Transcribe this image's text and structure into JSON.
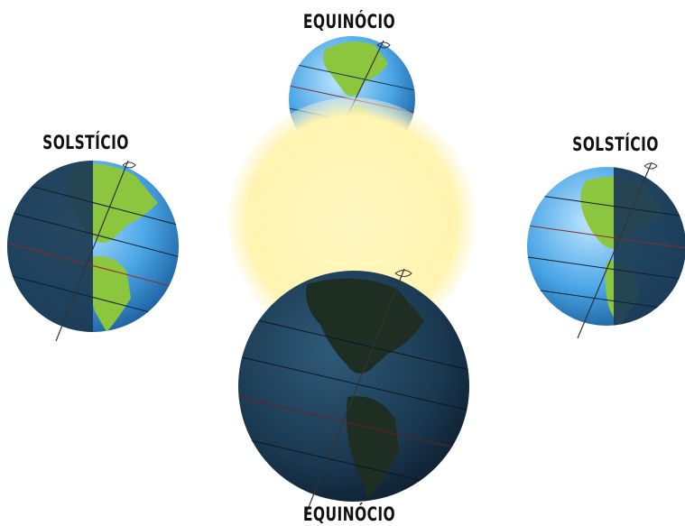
{
  "labels": {
    "top": "EQUINÓCIO",
    "left": "SOLSTÍCIO",
    "right": "SOLSTÍCIO",
    "bottom": "EQUINÓCIO"
  },
  "colors": {
    "sun": "#fff6b5",
    "ocean_lit": "#5bb0e8",
    "land_lit": "#8cc63f",
    "ocean_dark": "#1b3a52",
    "land_dark": "#1f2e22"
  }
}
